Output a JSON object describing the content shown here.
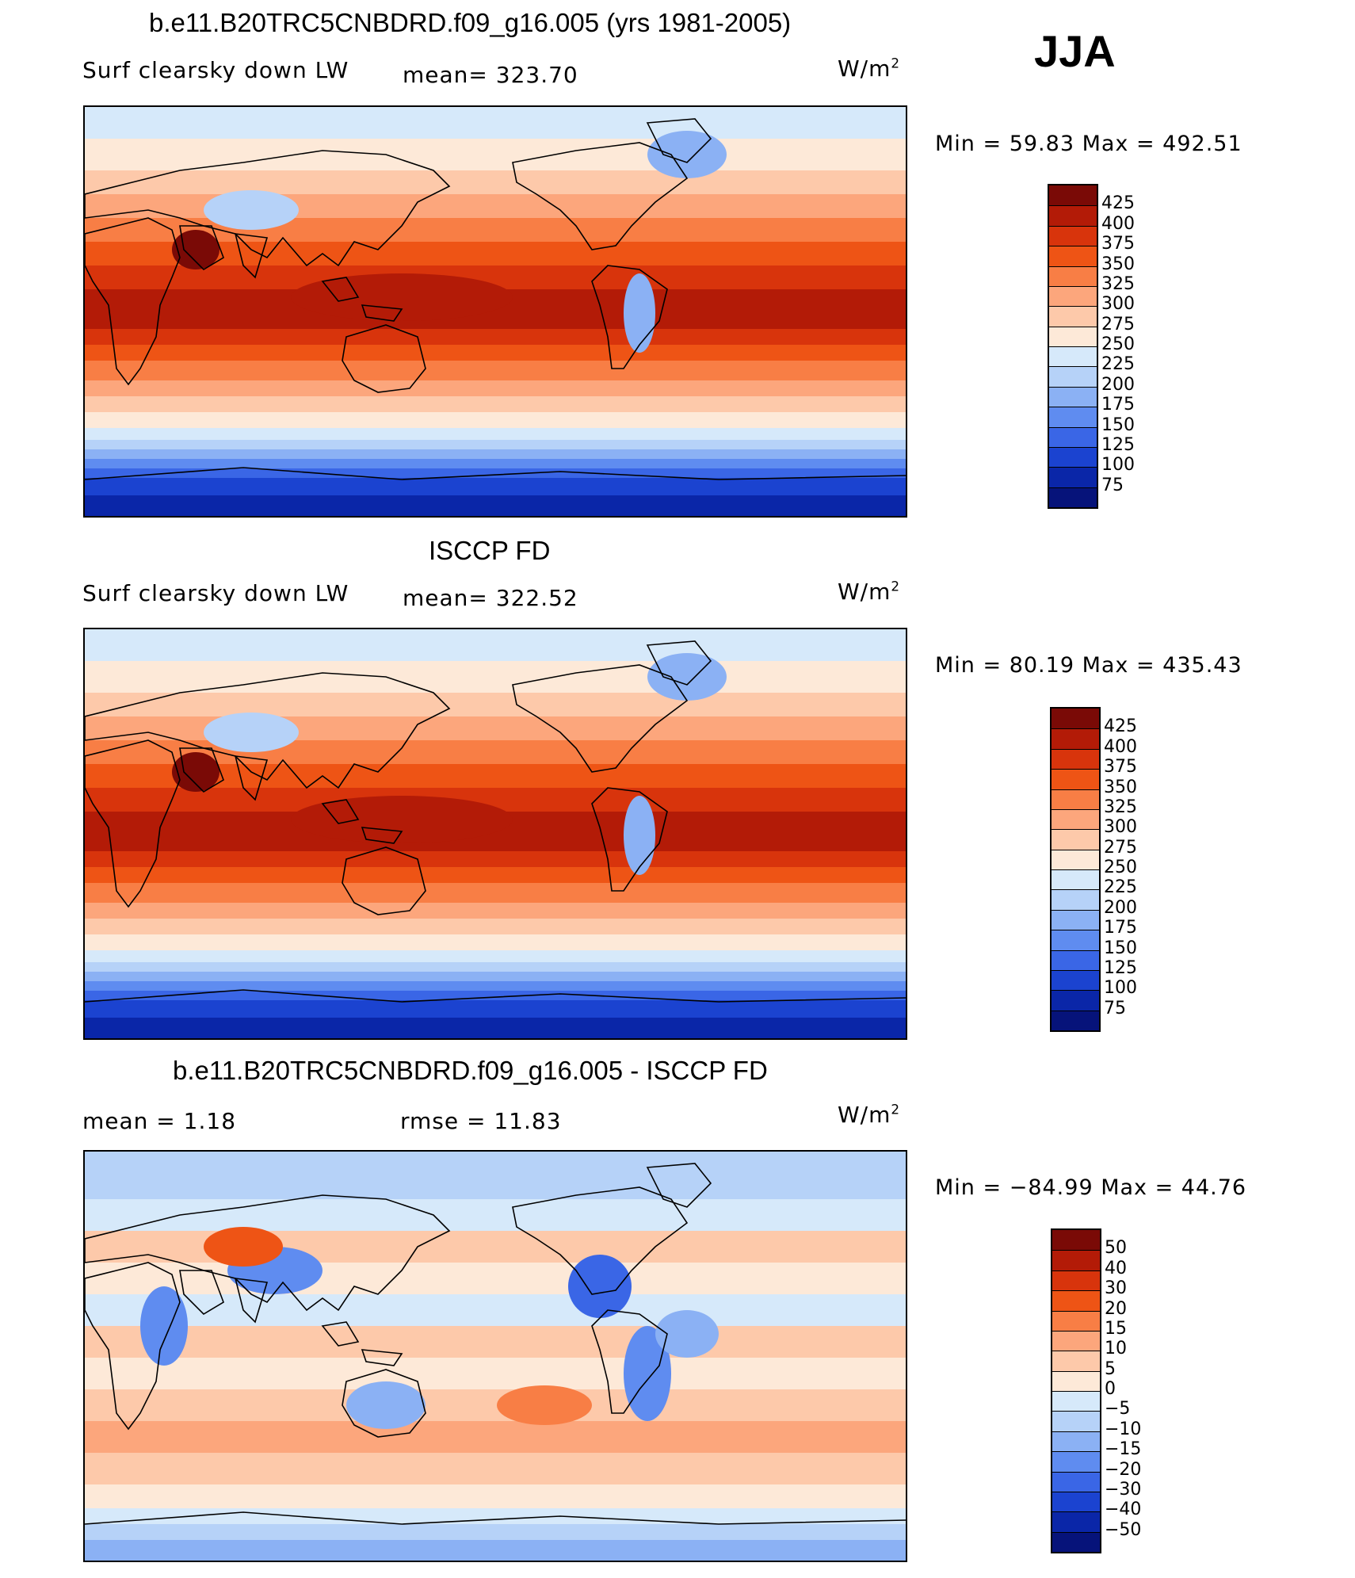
{
  "header": {
    "season": "JJA"
  },
  "panels": [
    {
      "title": "b.e11.B20TRC5CNBDRD.f09_g16.005 (yrs 1981-2005)",
      "left_label": "Surf clearsky down LW",
      "center_label": "mean= 323.70",
      "units_base": "W/m",
      "units_exp": "2",
      "minmax": "Min =   59.83  Max  =  492.51",
      "levels": [
        "425",
        "400",
        "375",
        "350",
        "325",
        "300",
        "275",
        "250",
        "225",
        "200",
        "175",
        "150",
        "125",
        "100",
        "75"
      ],
      "colors": [
        "#7a0a06",
        "#b31b07",
        "#d8340c",
        "#ee5415",
        "#f87e45",
        "#fca67c",
        "#fdc9aa",
        "#fde9d8",
        "#d6e9fa",
        "#b6d2f8",
        "#8bb1f4",
        "#5f8cf0",
        "#3a66e6",
        "#1b43d0",
        "#0a26a8",
        "#06137a"
      ],
      "style": "absolute"
    },
    {
      "title": "ISCCP FD",
      "left_label": "Surf clearsky down LW",
      "center_label": "mean= 322.52",
      "units_base": "W/m",
      "units_exp": "2",
      "minmax": "Min =   80.19  Max  =  435.43",
      "levels": [
        "425",
        "400",
        "375",
        "350",
        "325",
        "300",
        "275",
        "250",
        "225",
        "200",
        "175",
        "150",
        "125",
        "100",
        "75"
      ],
      "colors": [
        "#7a0a06",
        "#b31b07",
        "#d8340c",
        "#ee5415",
        "#f87e45",
        "#fca67c",
        "#fdc9aa",
        "#fde9d8",
        "#d6e9fa",
        "#b6d2f8",
        "#8bb1f4",
        "#5f8cf0",
        "#3a66e6",
        "#1b43d0",
        "#0a26a8",
        "#06137a"
      ],
      "style": "absolute"
    },
    {
      "title": "b.e11.B20TRC5CNBDRD.f09_g16.005 - ISCCP FD",
      "left_label": "mean =     1.18",
      "center_label": "rmse =    11.83",
      "units_base": "W/m",
      "units_exp": "2",
      "minmax": "Min  =  −84.99  Max  =     44.76",
      "levels": [
        "50",
        "40",
        "30",
        "20",
        "15",
        "10",
        "5",
        "0",
        "−5",
        "−10",
        "−15",
        "−20",
        "−30",
        "−40",
        "−50"
      ],
      "colors": [
        "#7a0a06",
        "#b31b07",
        "#d8340c",
        "#ee5415",
        "#f87e45",
        "#fca67c",
        "#fdc9aa",
        "#fde9d8",
        "#d6e9fa",
        "#b6d2f8",
        "#8bb1f4",
        "#5f8cf0",
        "#3a66e6",
        "#1b43d0",
        "#0a26a8",
        "#06137a"
      ],
      "style": "diff"
    }
  ]
}
